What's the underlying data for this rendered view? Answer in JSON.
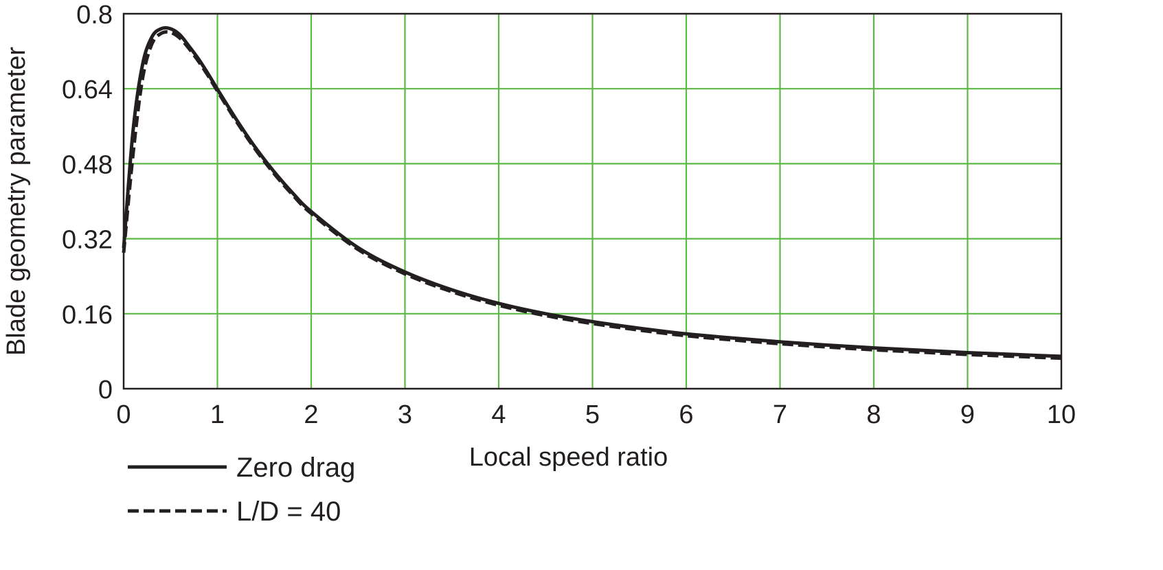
{
  "chart_data": {
    "type": "line",
    "title": "",
    "xlabel": "Local speed ratio",
    "ylabel": "Blade geometry parameter",
    "xlim": [
      0,
      10
    ],
    "ylim": [
      0,
      0.8
    ],
    "x_ticks": [
      0,
      1,
      2,
      3,
      4,
      5,
      6,
      7,
      8,
      9,
      10
    ],
    "x_tick_labels": [
      "0",
      "1",
      "2",
      "3",
      "4",
      "5",
      "6",
      "7",
      "8",
      "9",
      "10"
    ],
    "y_ticks": [
      0,
      0.16,
      0.32,
      0.48,
      0.64,
      0.8
    ],
    "y_tick_labels": [
      "0",
      "0.16",
      "0.32",
      "0.48",
      "0.64",
      "0.8"
    ],
    "grid": true,
    "grid_color": "#5cb946",
    "legend_position": "bottom-left",
    "series": [
      {
        "name": "Zero drag",
        "style": "solid",
        "color": "#231f20",
        "x": [
          0,
          0.1,
          0.2,
          0.3,
          0.4,
          0.5,
          0.6,
          0.7,
          0.8,
          0.9,
          1.0,
          1.2,
          1.4,
          1.6,
          1.8,
          2.0,
          2.5,
          3.0,
          3.5,
          4.0,
          4.5,
          5.0,
          5.5,
          6.0,
          6.5,
          7.0,
          7.5,
          8.0,
          8.5,
          9.0,
          9.5,
          10.0
        ],
        "y": [
          0.3,
          0.55,
          0.69,
          0.75,
          0.768,
          0.768,
          0.755,
          0.73,
          0.703,
          0.672,
          0.639,
          0.575,
          0.516,
          0.464,
          0.418,
          0.378,
          0.301,
          0.249,
          0.211,
          0.182,
          0.16,
          0.143,
          0.129,
          0.117,
          0.108,
          0.1,
          0.093,
          0.087,
          0.082,
          0.077,
          0.073,
          0.069
        ]
      },
      {
        "name": "L/D = 40",
        "style": "dashed",
        "color": "#231f20",
        "x": [
          0,
          0.1,
          0.2,
          0.3,
          0.4,
          0.5,
          0.6,
          0.7,
          0.8,
          0.9,
          1.0,
          1.2,
          1.4,
          1.6,
          1.8,
          2.0,
          2.5,
          3.0,
          3.5,
          4.0,
          4.5,
          5.0,
          5.5,
          6.0,
          6.5,
          7.0,
          7.5,
          8.0,
          8.5,
          9.0,
          9.5,
          10.0
        ],
        "y": [
          0.29,
          0.5,
          0.66,
          0.735,
          0.758,
          0.76,
          0.748,
          0.725,
          0.698,
          0.668,
          0.635,
          0.571,
          0.512,
          0.46,
          0.414,
          0.374,
          0.297,
          0.245,
          0.207,
          0.178,
          0.156,
          0.139,
          0.125,
          0.113,
          0.104,
          0.096,
          0.089,
          0.083,
          0.078,
          0.073,
          0.069,
          0.065
        ]
      }
    ]
  }
}
